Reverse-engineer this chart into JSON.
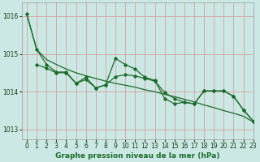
{
  "background_color": "#cce8e4",
  "grid_color": "#d4a0a0",
  "line_color": "#1a6b2a",
  "title": "Graphe pression niveau de la mer (hPa)",
  "xlim": [
    -0.5,
    23
  ],
  "ylim": [
    1012.75,
    1016.35
  ],
  "yticks": [
    1013,
    1014,
    1015,
    1016
  ],
  "xticks": [
    0,
    1,
    2,
    3,
    4,
    5,
    6,
    7,
    8,
    9,
    10,
    11,
    12,
    13,
    14,
    15,
    16,
    17,
    18,
    19,
    20,
    21,
    22,
    23
  ],
  "line1_x": [
    0,
    1,
    2,
    3,
    4,
    5,
    6,
    7,
    8,
    9,
    10,
    11,
    12,
    13,
    14,
    15,
    16,
    17,
    18,
    19,
    20,
    21,
    22,
    23
  ],
  "line1_y": [
    1016.05,
    1015.12,
    1014.85,
    1014.72,
    1014.6,
    1014.5,
    1014.42,
    1014.35,
    1014.28,
    1014.22,
    1014.17,
    1014.12,
    1014.05,
    1014.0,
    1013.93,
    1013.87,
    1013.8,
    1013.73,
    1013.65,
    1013.58,
    1013.5,
    1013.43,
    1013.35,
    1013.2
  ],
  "line2_x": [
    0,
    1,
    2,
    3,
    4,
    5,
    6,
    7,
    8,
    9,
    10,
    11,
    12,
    13,
    14,
    15,
    16,
    17,
    18,
    19,
    20,
    21,
    22,
    23
  ],
  "line2_y": [
    1016.05,
    1015.12,
    1014.72,
    1014.52,
    1014.52,
    1014.22,
    1014.38,
    1014.1,
    1014.18,
    1014.88,
    1014.72,
    1014.6,
    1014.38,
    1014.3,
    1013.82,
    1013.68,
    1013.72,
    1013.68,
    1014.02,
    1014.02,
    1014.02,
    1013.88,
    1013.52,
    1013.22
  ],
  "line3_x": [
    1,
    2,
    3,
    4,
    5,
    6,
    7,
    8,
    9,
    10,
    11,
    12,
    13,
    14,
    15,
    16,
    17,
    18,
    19,
    20,
    21,
    22,
    23
  ],
  "line3_y": [
    1014.72,
    1014.62,
    1014.5,
    1014.5,
    1014.22,
    1014.32,
    1014.1,
    1014.18,
    1014.4,
    1014.45,
    1014.42,
    1014.35,
    1014.28,
    1013.98,
    1013.82,
    1013.72,
    1013.68,
    1014.02,
    1014.02,
    1014.02,
    1013.88,
    1013.52,
    1013.22
  ],
  "title_fontsize": 6.5,
  "tick_fontsize": 5.5
}
